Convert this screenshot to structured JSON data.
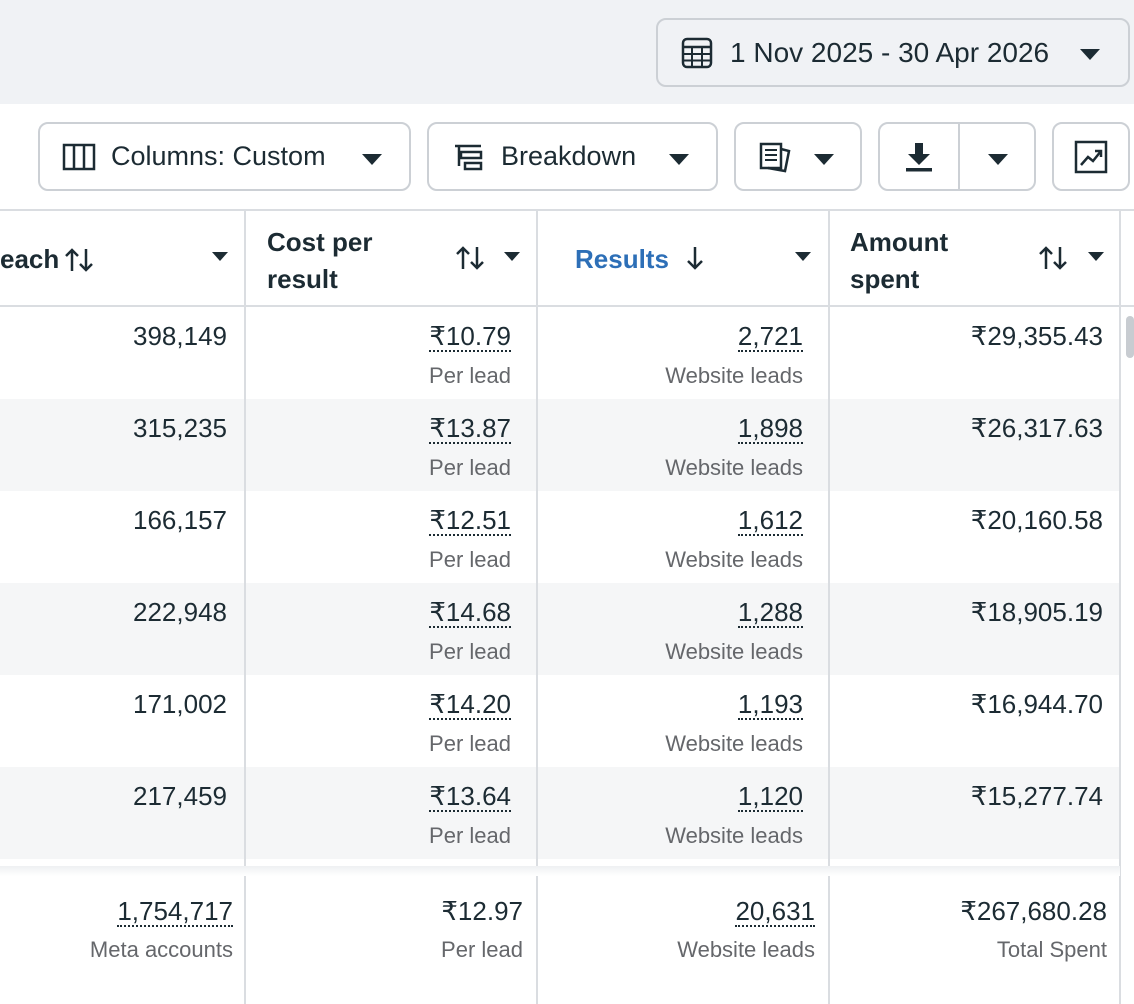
{
  "date_range": {
    "label": "1 Nov 2025 - 30 Apr 2026"
  },
  "toolbar": {
    "columns_label": "Columns: Custom",
    "breakdown_label": "Breakdown"
  },
  "headers": {
    "reach": "each",
    "cost_per_result_line1": "Cost per",
    "cost_per_result_line2": "result",
    "results": "Results",
    "amount_spent_line1": "Amount",
    "amount_spent_line2": "spent"
  },
  "rows": [
    {
      "reach": "398,149",
      "cost": "₹10.79",
      "cost_sub": "Per lead",
      "results": "2,721",
      "results_sub": "Website leads",
      "spent": "₹29,355.43"
    },
    {
      "reach": "315,235",
      "cost": "₹13.87",
      "cost_sub": "Per lead",
      "results": "1,898",
      "results_sub": "Website leads",
      "spent": "₹26,317.63"
    },
    {
      "reach": "166,157",
      "cost": "₹12.51",
      "cost_sub": "Per lead",
      "results": "1,612",
      "results_sub": "Website leads",
      "spent": "₹20,160.58"
    },
    {
      "reach": "222,948",
      "cost": "₹14.68",
      "cost_sub": "Per lead",
      "results": "1,288",
      "results_sub": "Website leads",
      "spent": "₹18,905.19"
    },
    {
      "reach": "171,002",
      "cost": "₹14.20",
      "cost_sub": "Per lead",
      "results": "1,193",
      "results_sub": "Website leads",
      "spent": "₹16,944.70"
    },
    {
      "reach": "217,459",
      "cost": "₹13.64",
      "cost_sub": "Per lead",
      "results": "1,120",
      "results_sub": "Website leads",
      "spent": "₹15,277.74"
    }
  ],
  "totals": {
    "reach": "1,754,717",
    "reach_sub": "Meta accounts",
    "cost": "₹12.97",
    "cost_sub": "Per lead",
    "results": "20,631",
    "results_sub": "Website leads",
    "spent": "₹267,680.28",
    "spent_sub": "Total Spent"
  },
  "colors": {
    "accent": "#2d6fb7",
    "text": "#1c2b33",
    "muted": "#65676b",
    "border": "#ccd0d5",
    "band": "#f0f2f5"
  }
}
